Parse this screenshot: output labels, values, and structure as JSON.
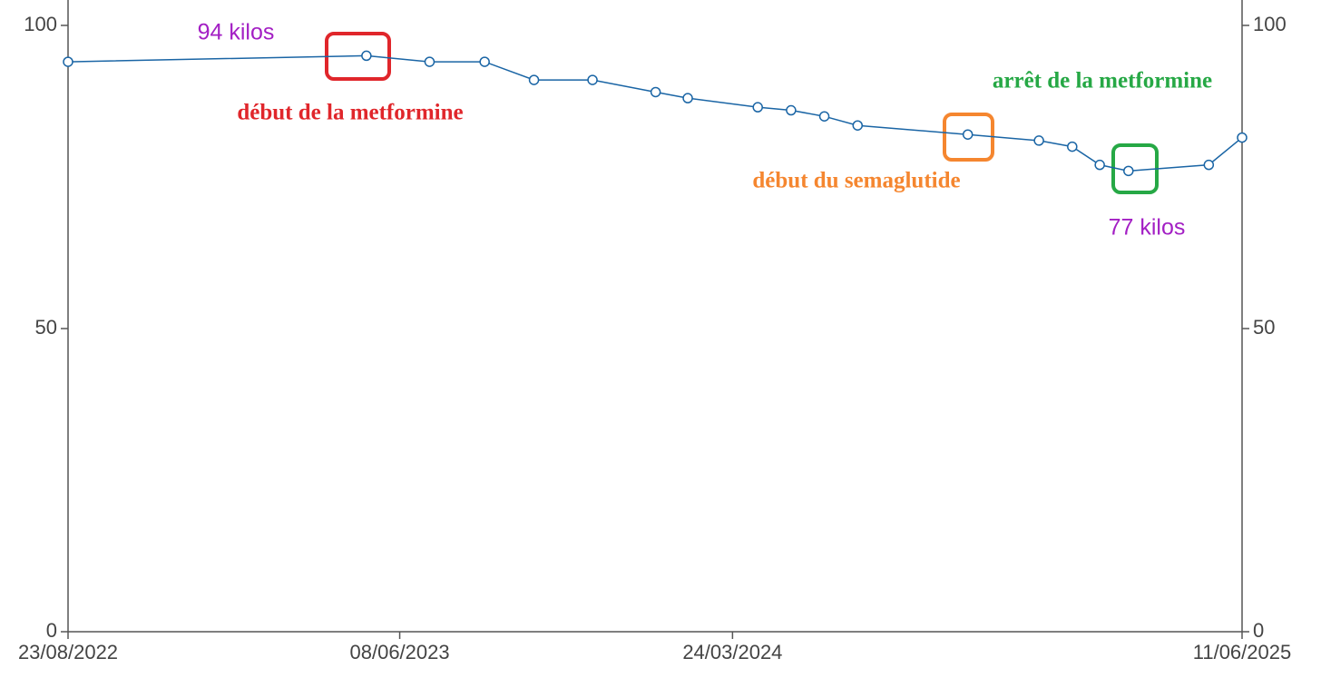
{
  "chart_data": {
    "type": "line",
    "x": [
      "23/08/2022",
      "10/05/2023",
      "04/07/2023",
      "21/08/2023",
      "03/10/2023",
      "23/11/2023",
      "17/01/2024",
      "14/02/2024",
      "15/04/2024",
      "14/05/2024",
      "12/06/2024",
      "11/07/2024",
      "15/10/2024",
      "16/12/2024",
      "14/01/2025",
      "07/02/2025",
      "04/03/2025",
      "13/05/2025",
      "11/06/2025"
    ],
    "series": [
      {
        "color": "#1a65a5",
        "values": [
          94,
          95,
          94,
          94,
          91,
          91,
          89,
          88,
          86.5,
          86,
          85,
          83.5,
          82,
          81,
          80,
          77,
          76,
          77,
          81.5
        ]
      }
    ],
    "xlim": [
      "23/08/2022",
      "11/06/2025"
    ],
    "xticks": [
      "23/08/2022",
      "08/06/2023",
      "24/03/2024",
      "11/06/2025"
    ],
    "ylim": [
      0,
      100
    ],
    "yticks": [
      0,
      50,
      100
    ],
    "y2lim": [
      0,
      100
    ],
    "y2ticks": [
      0,
      50,
      100
    ],
    "annotations": [
      {
        "text": "94 kilos",
        "color": "#a31fc4"
      },
      {
        "text": "début de la metformine",
        "color": "#e0262b"
      },
      {
        "text": "début du semaglutide",
        "color": "#f5862f"
      },
      {
        "text": "arrêt de la metformine",
        "color": "#26a845"
      },
      {
        "text": "77 kilos",
        "color": "#a31fc4"
      }
    ]
  }
}
